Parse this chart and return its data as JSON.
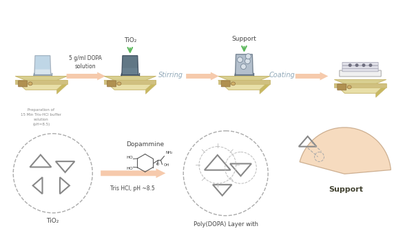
{
  "bg_color": "#ffffff",
  "arrow_color": "#f5c5a3",
  "green_arrow_color": "#5cb85c",
  "scale_body_color": "#e8dfa8",
  "scale_top_color": "#d8cf90",
  "scale_dark_color": "#c8b870",
  "scale_btn_color": "#b09050",
  "beaker1_color": "#c8dae8",
  "beaker2_color": "#506878",
  "beaker3_color": "#8898a8",
  "membrane_color": "#e0e0e8",
  "membrane_edge": "#a0a0b0",
  "triangle_color": "#888888",
  "dashed_color": "#aaaaaa",
  "support_fill": "#f5d8b8",
  "support_edge": "#c8a888",
  "text_dark": "#444444",
  "text_gray": "#888888",
  "text_blue": "#90a8b8",
  "stirring_text": "Stirring",
  "coating_text": "Coating",
  "tio2_text": "TiO₂",
  "support_label": "Support",
  "dopa_text": "5 g/ml DOPA\nsolution",
  "prep_text": "Preparation of\n15 Min Tris-HCl buffer\nsolution\n(pH=8.5)",
  "dopamine_text": "Dopammine",
  "tris_text": "Tris HCl, pH ~8.5",
  "poly_text": "Poly(DOPA) Layer with",
  "tio2_bottom": "TiO₂",
  "support_bold": "Support"
}
